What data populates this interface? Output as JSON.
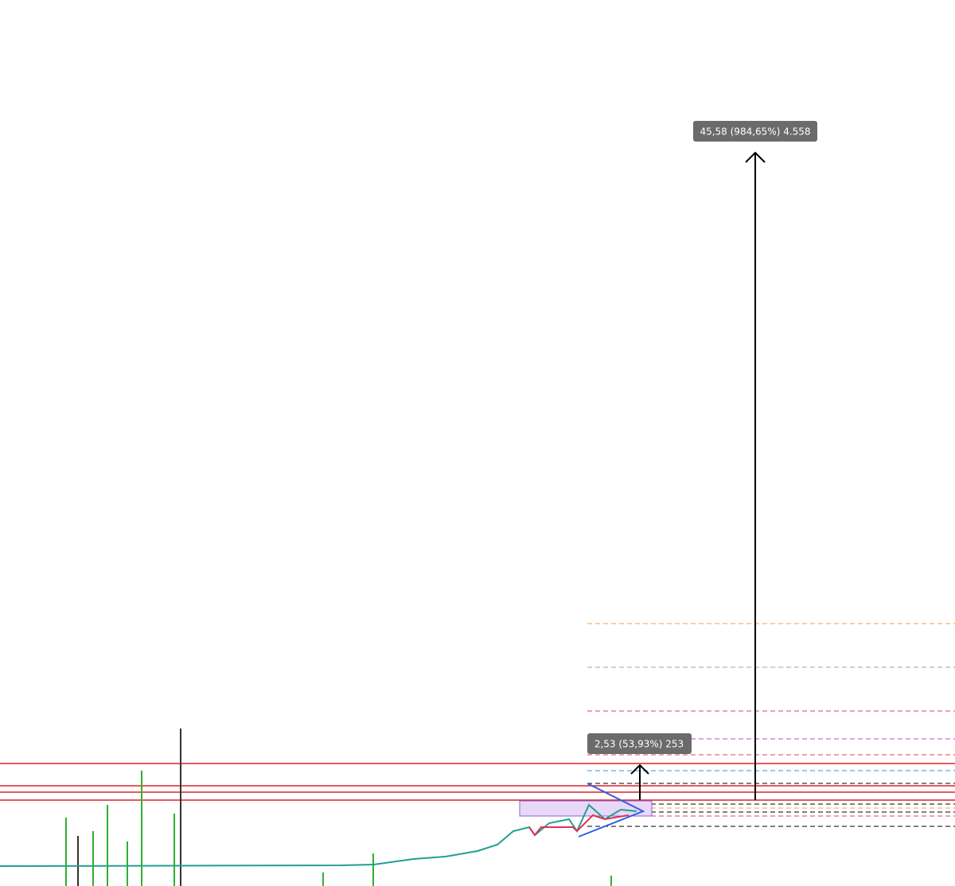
{
  "measures": [
    {
      "label": "45,58 (984,65%) 4.558"
    },
    {
      "label": "2,53 (53,93%) 253"
    }
  ]
}
